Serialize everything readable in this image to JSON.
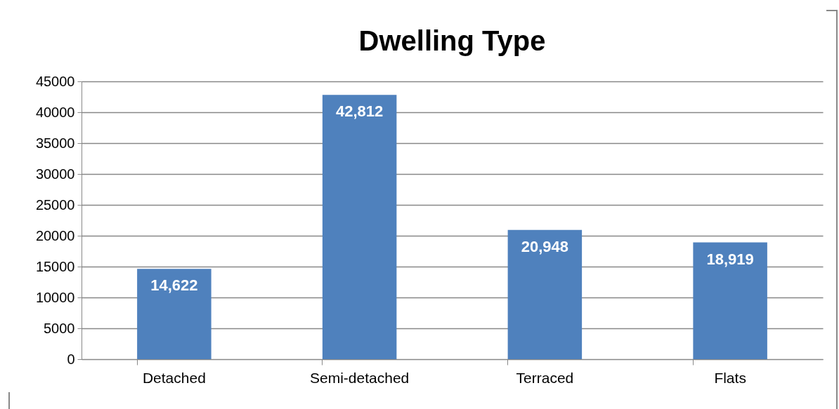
{
  "chart_data": {
    "type": "bar",
    "title": "Dwelling Type",
    "categories": [
      "Detached",
      "Semi-detached",
      "Terraced",
      "Flats"
    ],
    "values": [
      14622,
      42812,
      20948,
      18919
    ],
    "value_labels": [
      "14,622",
      "42,812",
      "20,948",
      "18,919"
    ],
    "color": "#4f81bd",
    "ylim": [
      0,
      45000
    ],
    "yticks": [
      0,
      5000,
      10000,
      15000,
      20000,
      25000,
      30000,
      35000,
      40000,
      45000
    ],
    "grid": "y"
  }
}
